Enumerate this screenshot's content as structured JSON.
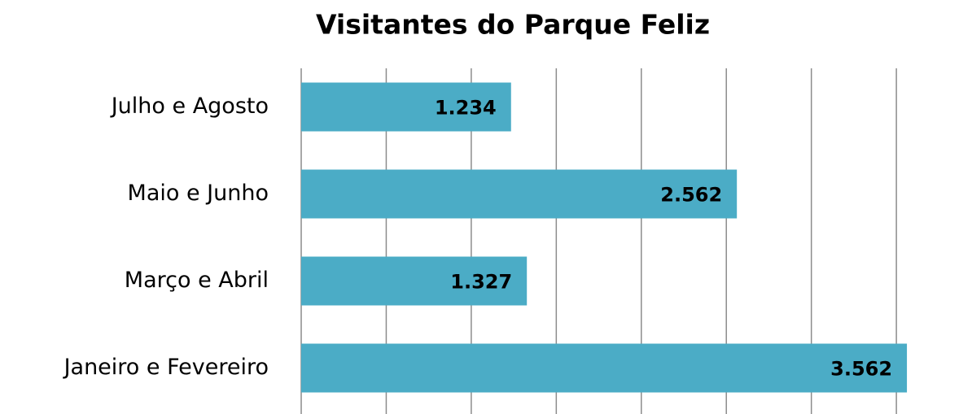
{
  "chart_data": {
    "type": "bar",
    "orientation": "horizontal",
    "title": "Visitantes do Parque Feliz",
    "categories": [
      "Janeiro e Fevereiro",
      "Março e Abril",
      "Maio e Junho",
      "Julho e Agosto"
    ],
    "values": [
      3562,
      1327,
      2562,
      1234
    ],
    "value_labels": [
      "3.562",
      "1.327",
      "2.562",
      "1.234"
    ],
    "color": "#4bacc6",
    "xlim": [
      0,
      3600
    ],
    "xticks": [
      0,
      500,
      1000,
      1500,
      2000,
      2500,
      3000,
      3500
    ],
    "grid": true
  }
}
